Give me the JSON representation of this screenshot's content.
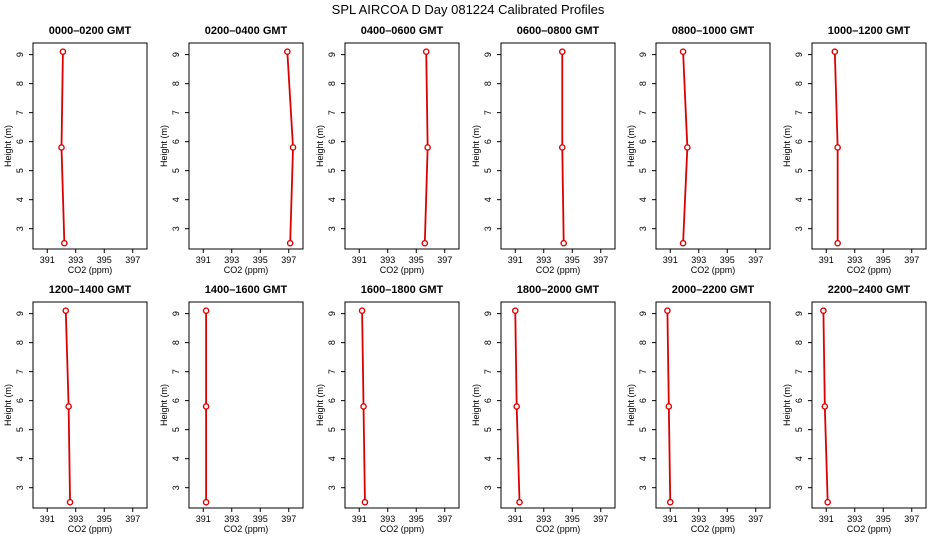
{
  "figure": {
    "title": "SPL AIRCOA D  Day 081224  Calibrated Profiles",
    "line_color": "#dd0000",
    "marker_color": "#dd0000"
  },
  "chart_data": [
    {
      "type": "line",
      "title": "0000–0200 GMT",
      "xlabel": "CO2 (ppm)",
      "ylabel": "Height (m)",
      "xlim": [
        390,
        398
      ],
      "ylim": [
        2.3,
        9.4
      ],
      "xticks": [
        391,
        393,
        395,
        397
      ],
      "yticks": [
        3,
        4,
        5,
        6,
        7,
        8,
        9
      ],
      "series": [
        {
          "x": [
            392.1,
            392.0,
            392.2
          ],
          "y": [
            9.1,
            5.8,
            2.5
          ]
        }
      ]
    },
    {
      "type": "line",
      "title": "0200–0400 GMT",
      "xlabel": "CO2 (ppm)",
      "ylabel": "Height (m)",
      "xlim": [
        390,
        398
      ],
      "ylim": [
        2.3,
        9.4
      ],
      "xticks": [
        391,
        393,
        395,
        397
      ],
      "yticks": [
        3,
        4,
        5,
        6,
        7,
        8,
        9
      ],
      "series": [
        {
          "x": [
            396.9,
            397.3,
            397.1
          ],
          "y": [
            9.1,
            5.8,
            2.5
          ]
        }
      ]
    },
    {
      "type": "line",
      "title": "0400–0600 GMT",
      "xlabel": "CO2 (ppm)",
      "ylabel": "Height (m)",
      "xlim": [
        390,
        398
      ],
      "ylim": [
        2.3,
        9.4
      ],
      "xticks": [
        391,
        393,
        395,
        397
      ],
      "yticks": [
        3,
        4,
        5,
        6,
        7,
        8,
        9
      ],
      "series": [
        {
          "x": [
            395.7,
            395.8,
            395.6
          ],
          "y": [
            9.1,
            5.8,
            2.5
          ]
        }
      ]
    },
    {
      "type": "line",
      "title": "0600–0800 GMT",
      "xlabel": "CO2 (ppm)",
      "ylabel": "Height (m)",
      "xlim": [
        390,
        398
      ],
      "ylim": [
        2.3,
        9.4
      ],
      "xticks": [
        391,
        393,
        395,
        397
      ],
      "yticks": [
        3,
        4,
        5,
        6,
        7,
        8,
        9
      ],
      "series": [
        {
          "x": [
            394.3,
            394.3,
            394.4
          ],
          "y": [
            9.1,
            5.8,
            2.5
          ]
        }
      ]
    },
    {
      "type": "line",
      "title": "0800–1000 GMT",
      "xlabel": "CO2 (ppm)",
      "ylabel": "Height (m)",
      "xlim": [
        390,
        398
      ],
      "ylim": [
        2.3,
        9.4
      ],
      "xticks": [
        391,
        393,
        395,
        397
      ],
      "yticks": [
        3,
        4,
        5,
        6,
        7,
        8,
        9
      ],
      "series": [
        {
          "x": [
            391.9,
            392.2,
            391.9
          ],
          "y": [
            9.1,
            5.8,
            2.5
          ]
        }
      ]
    },
    {
      "type": "line",
      "title": "1000–1200 GMT",
      "xlabel": "CO2 (ppm)",
      "ylabel": "Height (m)",
      "xlim": [
        390,
        398
      ],
      "ylim": [
        2.3,
        9.4
      ],
      "xticks": [
        391,
        393,
        395,
        397
      ],
      "yticks": [
        3,
        4,
        5,
        6,
        7,
        8,
        9
      ],
      "series": [
        {
          "x": [
            391.6,
            391.8,
            391.8
          ],
          "y": [
            9.1,
            5.8,
            2.5
          ]
        }
      ]
    },
    {
      "type": "line",
      "title": "1200–1400 GMT",
      "xlabel": "CO2 (ppm)",
      "ylabel": "Height (m)",
      "xlim": [
        390,
        398
      ],
      "ylim": [
        2.3,
        9.4
      ],
      "xticks": [
        391,
        393,
        395,
        397
      ],
      "yticks": [
        3,
        4,
        5,
        6,
        7,
        8,
        9
      ],
      "series": [
        {
          "x": [
            392.3,
            392.5,
            392.6
          ],
          "y": [
            9.1,
            5.8,
            2.5
          ]
        }
      ]
    },
    {
      "type": "line",
      "title": "1400–1600 GMT",
      "xlabel": "CO2 (ppm)",
      "ylabel": "Height (m)",
      "xlim": [
        390,
        398
      ],
      "ylim": [
        2.3,
        9.4
      ],
      "xticks": [
        391,
        393,
        395,
        397
      ],
      "yticks": [
        3,
        4,
        5,
        6,
        7,
        8,
        9
      ],
      "series": [
        {
          "x": [
            391.2,
            391.2,
            391.2
          ],
          "y": [
            9.1,
            5.8,
            2.5
          ]
        }
      ]
    },
    {
      "type": "line",
      "title": "1600–1800 GMT",
      "xlabel": "CO2 (ppm)",
      "ylabel": "Height (m)",
      "xlim": [
        390,
        398
      ],
      "ylim": [
        2.3,
        9.4
      ],
      "xticks": [
        391,
        393,
        395,
        397
      ],
      "yticks": [
        3,
        4,
        5,
        6,
        7,
        8,
        9
      ],
      "series": [
        {
          "x": [
            391.2,
            391.3,
            391.4
          ],
          "y": [
            9.1,
            5.8,
            2.5
          ]
        }
      ]
    },
    {
      "type": "line",
      "title": "1800–2000 GMT",
      "xlabel": "CO2 (ppm)",
      "ylabel": "Height (m)",
      "xlim": [
        390,
        398
      ],
      "ylim": [
        2.3,
        9.4
      ],
      "xticks": [
        391,
        393,
        395,
        397
      ],
      "yticks": [
        3,
        4,
        5,
        6,
        7,
        8,
        9
      ],
      "series": [
        {
          "x": [
            391.0,
            391.1,
            391.3
          ],
          "y": [
            9.1,
            5.8,
            2.5
          ]
        }
      ]
    },
    {
      "type": "line",
      "title": "2000–2200 GMT",
      "xlabel": "CO2 (ppm)",
      "ylabel": "Height (m)",
      "xlim": [
        390,
        398
      ],
      "ylim": [
        2.3,
        9.4
      ],
      "xticks": [
        391,
        393,
        395,
        397
      ],
      "yticks": [
        3,
        4,
        5,
        6,
        7,
        8,
        9
      ],
      "series": [
        {
          "x": [
            390.8,
            390.9,
            391.0
          ],
          "y": [
            9.1,
            5.8,
            2.5
          ]
        }
      ]
    },
    {
      "type": "line",
      "title": "2200–2400 GMT",
      "xlabel": "CO2 (ppm)",
      "ylabel": "Height (m)",
      "xlim": [
        390,
        398
      ],
      "ylim": [
        2.3,
        9.4
      ],
      "xticks": [
        391,
        393,
        395,
        397
      ],
      "yticks": [
        3,
        4,
        5,
        6,
        7,
        8,
        9
      ],
      "series": [
        {
          "x": [
            390.8,
            390.9,
            391.1
          ],
          "y": [
            9.1,
            5.8,
            2.5
          ]
        }
      ]
    }
  ]
}
